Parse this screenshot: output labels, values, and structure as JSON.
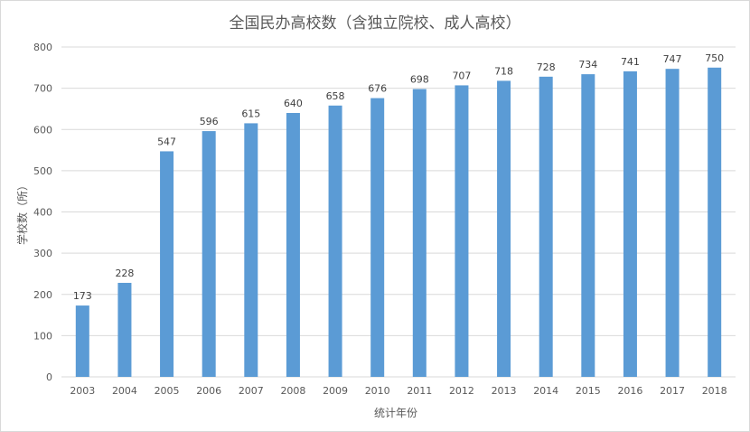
{
  "chart_data": {
    "type": "bar",
    "title": "全国民办高校数（含独立院校、成人高校）",
    "xlabel": "统计年份",
    "ylabel": "学校数（所）",
    "categories": [
      "2003",
      "2004",
      "2005",
      "2006",
      "2007",
      "2008",
      "2009",
      "2010",
      "2011",
      "2012",
      "2013",
      "2014",
      "2015",
      "2016",
      "2017",
      "2018"
    ],
    "values": [
      173,
      228,
      547,
      596,
      615,
      640,
      658,
      676,
      698,
      707,
      718,
      728,
      734,
      741,
      747,
      750
    ],
    "ylim": [
      0,
      800
    ],
    "yticks": [
      0,
      100,
      200,
      300,
      400,
      500,
      600,
      700,
      800
    ],
    "grid": true,
    "color": "#5b9bd5"
  }
}
